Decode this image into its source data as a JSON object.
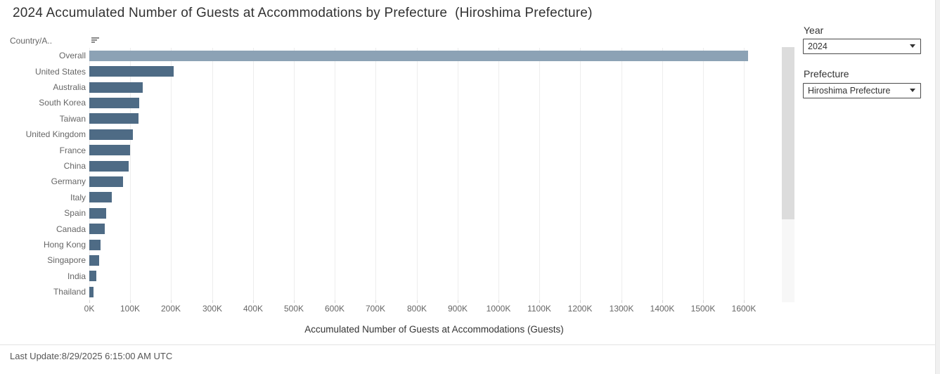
{
  "title": "2024 Accumulated Number of Guests at Accommodations by Prefecture  (Hiroshima Prefecture)",
  "column_header": "Country/A..",
  "filters": {
    "year": {
      "label": "Year",
      "value": "2024"
    },
    "prefecture": {
      "label": "Prefecture",
      "value": "Hiroshima Prefecture"
    }
  },
  "footer": {
    "last_update": "Last Update:8/29/2025 6:15:00 AM UTC"
  },
  "colors": {
    "overall_bar": "#8ca2b5",
    "country_bar": "#4e6b85",
    "gridline": "#ededed",
    "label_gray": "#666666",
    "scroll_thumb": "#dcdcdc",
    "scroll_track": "#f7f7f7"
  },
  "chart_data": {
    "type": "bar",
    "orientation": "horizontal",
    "title": "2024 Accumulated Number of Guests at Accommodations by Prefecture (Hiroshima Prefecture)",
    "categories": [
      "Overall",
      "United States",
      "Australia",
      "South Korea",
      "Taiwan",
      "United Kingdom",
      "France",
      "China",
      "Germany",
      "Italy",
      "Spain",
      "Canada",
      "Hong Kong",
      "Singapore",
      "India",
      "Thailand"
    ],
    "values": [
      1610000,
      207000,
      131000,
      122000,
      120000,
      106000,
      100000,
      97000,
      83000,
      55000,
      42000,
      37000,
      28000,
      24000,
      18000,
      10000
    ],
    "xlabel": "Accumulated Number of Guests at Accommodations (Guests)",
    "x_tick_labels": [
      "0K",
      "100K",
      "200K",
      "300K",
      "400K",
      "500K",
      "600K",
      "700K",
      "800K",
      "900K",
      "1000K",
      "1100K",
      "1200K",
      "1300K",
      "1400K",
      "1500K",
      "1600K"
    ],
    "x_tick_values": [
      0,
      100000,
      200000,
      300000,
      400000,
      500000,
      600000,
      700000,
      800000,
      900000,
      1000000,
      1100000,
      1200000,
      1300000,
      1400000,
      1500000,
      1600000
    ],
    "xlim": [
      0,
      1685000
    ],
    "grid": true,
    "legend": false
  }
}
